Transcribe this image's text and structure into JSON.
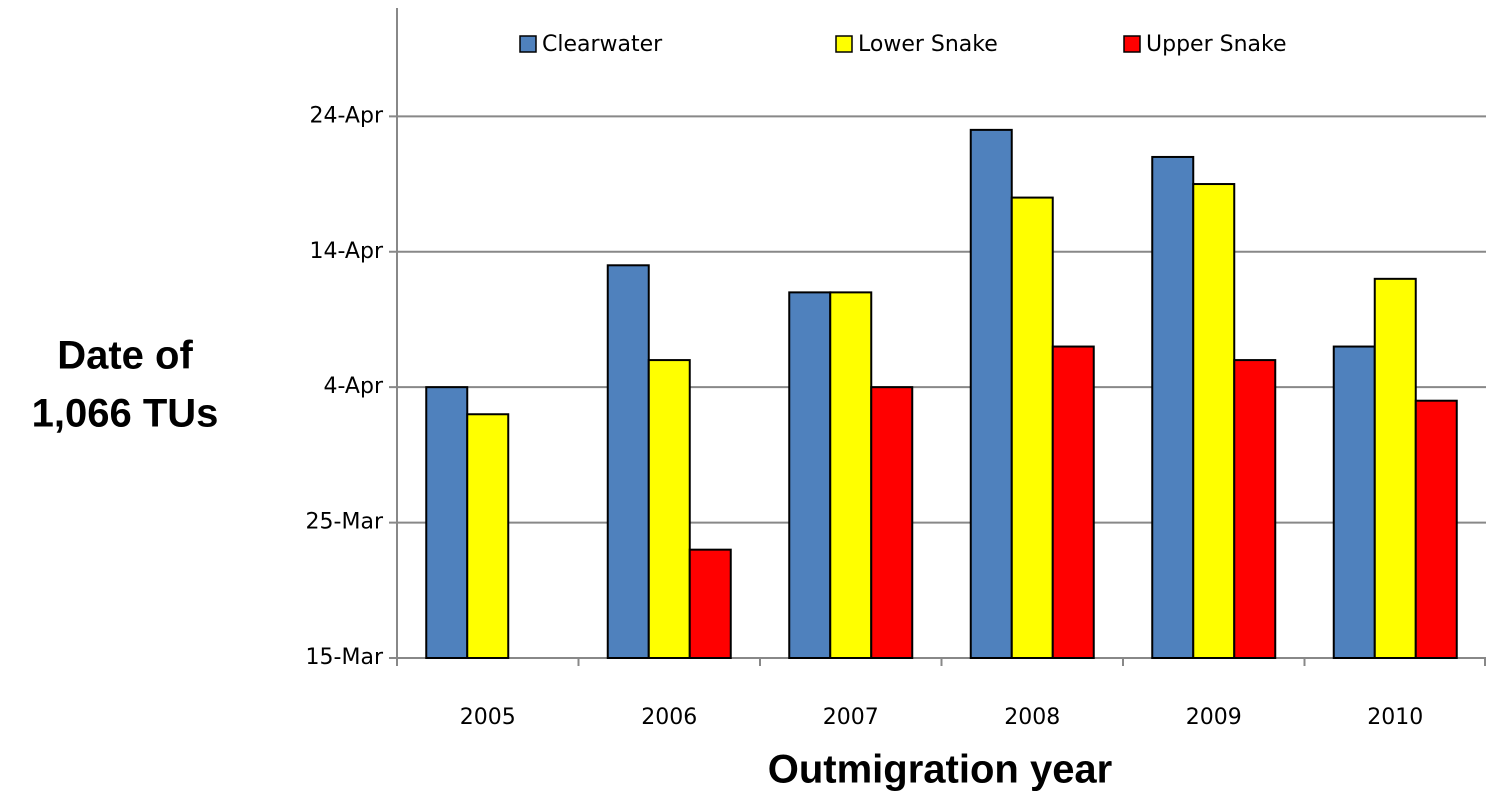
{
  "chart_data": {
    "type": "bar",
    "x_label": "Outmigration year",
    "y_label": [
      "Date of",
      "1,066 TUs"
    ],
    "categories": [
      "2005",
      "2006",
      "2007",
      "2008",
      "2009",
      "2010"
    ],
    "series": [
      {
        "name": "Clearwater",
        "color": "#4f81bd",
        "values": [
          94,
          103,
          101,
          113,
          111,
          97
        ]
      },
      {
        "name": "Lower Snake",
        "color": "#ffff00",
        "values": [
          92,
          96,
          101,
          108,
          109,
          102
        ]
      },
      {
        "name": "Upper Snake",
        "color": "#ff0000",
        "values": [
          null,
          82,
          94,
          97,
          96,
          93
        ]
      }
    ],
    "ylim": [
      74,
      122
    ],
    "yticks": [
      {
        "value": 74,
        "label": "15-Mar"
      },
      {
        "value": 84,
        "label": "25-Mar"
      },
      {
        "value": 94,
        "label": "4-Apr"
      },
      {
        "value": 104,
        "label": "14-Apr"
      },
      {
        "value": 114,
        "label": "24-Apr"
      }
    ],
    "grid": true,
    "legend": "top"
  }
}
